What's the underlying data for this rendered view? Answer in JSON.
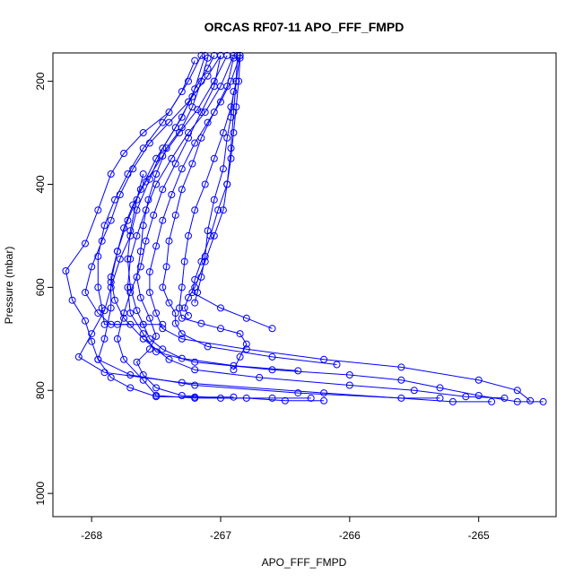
{
  "chart_data": {
    "type": "scatter",
    "title": "ORCAS RF07-11 APO_FFF_FMPD",
    "xlabel": "APO_FFF_FMPD",
    "ylabel": "Pressure (mbar)",
    "xlim": [
      -268.3,
      -264.4
    ],
    "ylim": [
      1045,
      145
    ],
    "y_reversed": true,
    "x_ticks": [
      -268,
      -267,
      -266,
      -265
    ],
    "y_ticks": [
      200,
      400,
      600,
      800,
      1000
    ],
    "grid": false,
    "legend": "none",
    "colors": {
      "series": "#0000ff",
      "axis": "#000000",
      "background": "#ffffff"
    },
    "marker": "open-circle",
    "series": [
      {
        "values": [
          [
            -267.05,
            150
          ],
          [
            -267.1,
            175
          ],
          [
            -267.2,
            215
          ],
          [
            -267.3,
            270
          ],
          [
            -267.45,
            330
          ],
          [
            -267.55,
            390
          ],
          [
            -267.65,
            450
          ],
          [
            -267.7,
            500
          ],
          [
            -267.78,
            545
          ],
          [
            -267.85,
            600
          ],
          [
            -267.9,
            645
          ],
          [
            -268.0,
            690
          ],
          [
            -268.1,
            735
          ],
          [
            -267.9,
            765
          ],
          [
            -267.3,
            785
          ],
          [
            -266.2,
            805
          ],
          [
            -265.2,
            822
          ],
          [
            -264.9,
            822
          ]
        ]
      },
      {
        "values": [
          [
            -267.15,
            150
          ],
          [
            -267.25,
            200
          ],
          [
            -267.4,
            260
          ],
          [
            -267.6,
            300
          ],
          [
            -267.75,
            340
          ],
          [
            -267.85,
            380
          ],
          [
            -267.95,
            450
          ],
          [
            -268.05,
            515
          ],
          [
            -268.2,
            568
          ],
          [
            -268.15,
            625
          ],
          [
            -268.05,
            665
          ],
          [
            -268.0,
            705
          ],
          [
            -267.95,
            740
          ],
          [
            -267.7,
            770
          ],
          [
            -267.2,
            790
          ],
          [
            -266.4,
            805
          ],
          [
            -265.6,
            815
          ],
          [
            -265.3,
            815
          ]
        ]
      },
      {
        "values": [
          [
            -267.0,
            150
          ],
          [
            -267.1,
            190
          ],
          [
            -267.25,
            240
          ],
          [
            -267.4,
            280
          ],
          [
            -267.55,
            320
          ],
          [
            -267.68,
            370
          ],
          [
            -267.78,
            420
          ],
          [
            -267.85,
            470
          ],
          [
            -267.92,
            510
          ],
          [
            -268.0,
            560
          ],
          [
            -268.05,
            610
          ],
          [
            -267.95,
            650
          ],
          [
            -267.85,
            672
          ],
          [
            -267.6,
            672
          ],
          [
            -267.45,
            672
          ]
        ]
      },
      {
        "values": [
          [
            -266.95,
            150
          ],
          [
            -267.05,
            200
          ],
          [
            -267.18,
            255
          ],
          [
            -267.32,
            300
          ],
          [
            -267.45,
            345
          ],
          [
            -267.58,
            395
          ],
          [
            -267.68,
            440
          ],
          [
            -267.75,
            485
          ],
          [
            -267.8,
            530
          ],
          [
            -267.85,
            580
          ],
          [
            -267.82,
            625
          ],
          [
            -267.75,
            660
          ],
          [
            -267.6,
            700
          ],
          [
            -267.4,
            740
          ],
          [
            -267.2,
            760
          ],
          [
            -266.7,
            775
          ],
          [
            -266.0,
            790
          ],
          [
            -265.5,
            800
          ],
          [
            -265.1,
            812
          ],
          [
            -264.8,
            815
          ]
        ]
      },
      {
        "values": [
          [
            -266.9,
            150
          ],
          [
            -267.0,
            210
          ],
          [
            -267.12,
            260
          ],
          [
            -267.25,
            300
          ],
          [
            -267.38,
            350
          ],
          [
            -267.5,
            400
          ],
          [
            -267.58,
            450
          ],
          [
            -267.65,
            500
          ],
          [
            -267.7,
            545
          ],
          [
            -267.72,
            600
          ],
          [
            -267.7,
            650
          ],
          [
            -267.6,
            690
          ],
          [
            -267.5,
            725
          ],
          [
            -267.2,
            745
          ],
          [
            -266.6,
            760
          ],
          [
            -266.0,
            770
          ],
          [
            -265.6,
            780
          ],
          [
            -265.3,
            795
          ],
          [
            -265.0,
            810
          ],
          [
            -264.7,
            822
          ],
          [
            -264.5,
            822
          ]
        ]
      },
      {
        "values": [
          [
            -267.1,
            155
          ],
          [
            -267.15,
            200
          ],
          [
            -267.22,
            250
          ],
          [
            -267.3,
            290
          ],
          [
            -267.42,
            330
          ],
          [
            -267.5,
            380
          ],
          [
            -267.56,
            430
          ],
          [
            -267.6,
            480
          ],
          [
            -267.62,
            530
          ],
          [
            -267.65,
            580
          ],
          [
            -267.62,
            620
          ],
          [
            -267.55,
            660
          ],
          [
            -267.5,
            695
          ],
          [
            -267.55,
            720
          ],
          [
            -267.65,
            745
          ],
          [
            -267.6,
            770
          ],
          [
            -267.5,
            795
          ],
          [
            -267.3,
            810
          ],
          [
            -267.0,
            815
          ],
          [
            -266.6,
            815
          ],
          [
            -266.3,
            815
          ]
        ]
      },
      {
        "values": [
          [
            -266.85,
            150
          ],
          [
            -266.92,
            200
          ],
          [
            -267.0,
            240
          ],
          [
            -267.1,
            280
          ],
          [
            -267.2,
            320
          ],
          [
            -267.3,
            370
          ],
          [
            -267.38,
            420
          ],
          [
            -267.45,
            470
          ],
          [
            -267.5,
            520
          ],
          [
            -267.55,
            570
          ],
          [
            -267.55,
            610
          ],
          [
            -267.5,
            650
          ],
          [
            -267.45,
            680
          ],
          [
            -267.3,
            700
          ],
          [
            -266.8,
            720
          ],
          [
            -266.2,
            740
          ],
          [
            -265.6,
            755
          ],
          [
            -265.0,
            780
          ],
          [
            -264.7,
            800
          ],
          [
            -264.6,
            820
          ]
        ]
      },
      {
        "values": [
          [
            -266.9,
            155
          ],
          [
            -266.95,
            210
          ],
          [
            -267.05,
            260
          ],
          [
            -267.15,
            310
          ],
          [
            -267.22,
            360
          ],
          [
            -267.3,
            410
          ],
          [
            -267.35,
            460
          ],
          [
            -267.4,
            510
          ],
          [
            -267.42,
            560
          ],
          [
            -267.45,
            600
          ],
          [
            -267.4,
            630
          ],
          [
            -267.35,
            650
          ],
          [
            -267.35,
            670
          ],
          [
            -267.3,
            690
          ],
          [
            -267.1,
            715
          ],
          [
            -266.6,
            735
          ],
          [
            -266.1,
            750
          ]
        ]
      },
      {
        "values": [
          [
            -266.85,
            150
          ],
          [
            -266.88,
            200
          ],
          [
            -266.92,
            250
          ],
          [
            -266.98,
            300
          ],
          [
            -267.05,
            350
          ],
          [
            -267.12,
            400
          ],
          [
            -267.2,
            450
          ],
          [
            -267.25,
            500
          ],
          [
            -267.28,
            550
          ],
          [
            -267.3,
            600
          ],
          [
            -267.32,
            640
          ],
          [
            -267.3,
            660
          ],
          [
            -267.15,
            670
          ],
          [
            -267.0,
            680
          ],
          [
            -266.85,
            690
          ],
          [
            -266.8,
            710
          ],
          [
            -266.85,
            735
          ],
          [
            -266.9,
            760
          ]
        ]
      },
      {
        "values": [
          [
            -266.85,
            155
          ],
          [
            -266.86,
            200
          ],
          [
            -266.88,
            250
          ],
          [
            -266.9,
            300
          ],
          [
            -266.92,
            350
          ],
          [
            -266.95,
            400
          ],
          [
            -266.98,
            450
          ],
          [
            -267.05,
            500
          ],
          [
            -267.12,
            550
          ],
          [
            -267.2,
            600
          ],
          [
            -267.25,
            620
          ],
          [
            -267.28,
            640
          ],
          [
            -267.25,
            655
          ]
        ]
      },
      {
        "values": [
          [
            -266.87,
            150
          ],
          [
            -266.88,
            200
          ],
          [
            -266.9,
            260
          ],
          [
            -266.92,
            330
          ],
          [
            -266.95,
            400
          ],
          [
            -267.02,
            450
          ],
          [
            -267.08,
            500
          ],
          [
            -267.15,
            550
          ],
          [
            -267.2,
            585
          ],
          [
            -267.22,
            610
          ],
          [
            -267.0,
            640
          ],
          [
            -266.8,
            660
          ],
          [
            -266.6,
            680
          ]
        ]
      },
      {
        "values": [
          [
            -267.0,
            150
          ],
          [
            -267.05,
            210
          ],
          [
            -267.15,
            260
          ],
          [
            -267.25,
            310
          ],
          [
            -267.35,
            360
          ],
          [
            -267.45,
            410
          ],
          [
            -267.52,
            460
          ],
          [
            -267.58,
            510
          ],
          [
            -267.62,
            560
          ],
          [
            -267.7,
            610
          ],
          [
            -267.75,
            650
          ],
          [
            -267.8,
            700
          ],
          [
            -267.75,
            740
          ],
          [
            -267.6,
            780
          ],
          [
            -267.5,
            810
          ],
          [
            -267.2,
            815
          ],
          [
            -266.8,
            815
          ],
          [
            -266.5,
            820
          ],
          [
            -266.2,
            820
          ]
        ]
      },
      {
        "values": [
          [
            -267.2,
            160
          ],
          [
            -267.3,
            220
          ],
          [
            -267.45,
            280
          ],
          [
            -267.6,
            330
          ],
          [
            -267.72,
            380
          ],
          [
            -267.82,
            430
          ],
          [
            -267.9,
            480
          ],
          [
            -267.95,
            540
          ],
          [
            -267.95,
            600
          ],
          [
            -267.92,
            640
          ],
          [
            -267.9,
            672
          ],
          [
            -267.8,
            672
          ],
          [
            -267.7,
            672
          ]
        ]
      },
      {
        "values": [
          [
            -267.12,
            150
          ],
          [
            -267.22,
            230
          ],
          [
            -267.35,
            290
          ],
          [
            -267.5,
            350
          ],
          [
            -267.62,
            410
          ],
          [
            -267.72,
            470
          ],
          [
            -267.8,
            530
          ],
          [
            -267.85,
            590
          ],
          [
            -267.85,
            640
          ],
          [
            -267.9,
            700
          ],
          [
            -267.95,
            740
          ],
          [
            -267.85,
            775
          ],
          [
            -267.7,
            795
          ],
          [
            -267.5,
            812
          ],
          [
            -267.2,
            813
          ],
          [
            -266.9,
            813
          ]
        ]
      },
      {
        "values": [
          [
            -267.6,
            380
          ],
          [
            -267.65,
            430
          ],
          [
            -267.7,
            490
          ],
          [
            -267.72,
            545
          ],
          [
            -267.7,
            600
          ],
          [
            -267.65,
            645
          ],
          [
            -267.6,
            672
          ],
          [
            -267.55,
            700
          ],
          [
            -267.45,
            720
          ],
          [
            -267.3,
            738
          ],
          [
            -266.9,
            752
          ],
          [
            -266.4,
            762
          ]
        ]
      },
      {
        "values": [
          [
            -266.9,
            220
          ],
          [
            -266.92,
            270
          ],
          [
            -266.95,
            310
          ],
          [
            -266.98,
            370
          ],
          [
            -267.05,
            430
          ],
          [
            -267.1,
            490
          ],
          [
            -267.12,
            540
          ],
          [
            -267.15,
            580
          ],
          [
            -267.18,
            610
          ],
          [
            -267.2,
            630
          ]
        ]
      }
    ]
  }
}
